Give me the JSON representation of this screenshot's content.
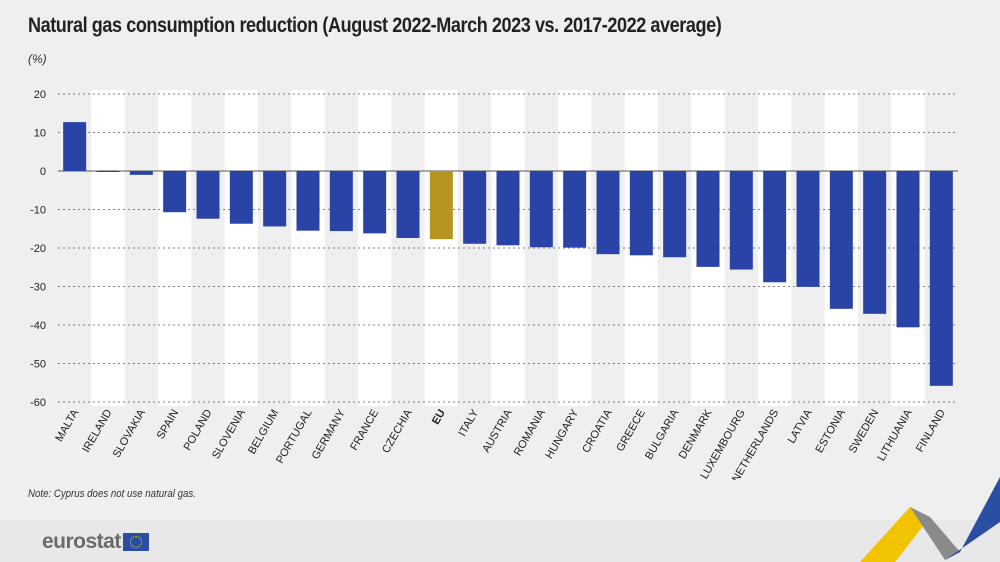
{
  "title": "Natural gas consumption reduction (August 2022-March 2023 vs. 2017-2022 average)",
  "unit": "(%)",
  "note": "Note: Cyprus does not use natural gas.",
  "logo": "eurostat",
  "colors": {
    "bar": "#2a43a7",
    "eu_bar": "#b5951f",
    "band": "#ffffff",
    "plot_bg": "#efefef",
    "grid": "#555555"
  },
  "chart_data": {
    "type": "bar",
    "title": "Natural gas consumption reduction (August 2022-March 2023 vs. 2017-2022 average)",
    "ylabel": "(%)",
    "xlabel": "",
    "ylim": [
      -60,
      20
    ],
    "yticks": [
      20,
      10,
      0,
      -10,
      -20,
      -30,
      -40,
      -50,
      -60
    ],
    "categories": [
      "MALTA",
      "IRELAND",
      "SLOVAKIA",
      "SPAIN",
      "POLAND",
      "SLOVENIA",
      "BELGIUM",
      "PORTUGAL",
      "GERMANY",
      "FRANCE",
      "CZECHIA",
      "EU",
      "ITALY",
      "AUSTRIA",
      "ROMANIA",
      "HUNGARY",
      "CROATIA",
      "GREECE",
      "BULGARIA",
      "DENMARK",
      "LUXEMBOURG",
      "NETHERLANDS",
      "LATVIA",
      "ESTONIA",
      "SWEDEN",
      "LITHUANIA",
      "FINLAND"
    ],
    "values": [
      12.7,
      0,
      -1,
      -10.7,
      -12.4,
      -13.7,
      -14.4,
      -15.5,
      -15.6,
      -16.2,
      -17.4,
      -17.7,
      -18.9,
      -19.3,
      -19.8,
      -19.9,
      -21.6,
      -21.9,
      -22.4,
      -24.9,
      -25.6,
      -28.9,
      -30.1,
      -35.8,
      -37.1,
      -40.6,
      -55.8
    ],
    "highlight": "EU",
    "grid": true
  }
}
